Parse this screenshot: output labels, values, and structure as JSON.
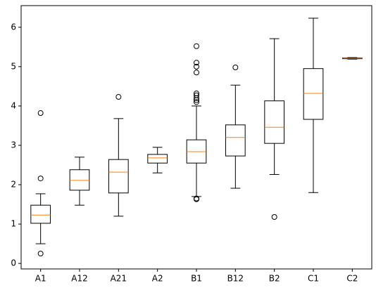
{
  "chart_data": {
    "type": "box",
    "categories": [
      "A1",
      "A12",
      "A21",
      "A2",
      "B1",
      "B12",
      "B2",
      "C1",
      "C2"
    ],
    "boxes": [
      {
        "whislo": 0.5,
        "q1": 1.02,
        "med": 1.23,
        "q3": 1.48,
        "whishi": 1.77,
        "fliers": [
          0.25,
          2.16,
          3.82
        ]
      },
      {
        "whislo": 1.48,
        "q1": 1.86,
        "med": 2.11,
        "q3": 2.38,
        "whishi": 2.7,
        "fliers": []
      },
      {
        "whislo": 1.2,
        "q1": 1.79,
        "med": 2.32,
        "q3": 2.64,
        "whishi": 3.68,
        "fliers": [
          4.23
        ]
      },
      {
        "whislo": 2.3,
        "q1": 2.55,
        "med": 2.68,
        "q3": 2.77,
        "whishi": 2.95,
        "fliers": []
      },
      {
        "whislo": 1.7,
        "q1": 2.55,
        "med": 2.84,
        "q3": 3.14,
        "whishi": 4.0,
        "fliers": [
          1.63,
          1.65,
          4.1,
          4.15,
          4.2,
          4.27,
          4.32,
          4.85,
          5.0,
          5.1,
          5.52
        ]
      },
      {
        "whislo": 1.91,
        "q1": 2.73,
        "med": 3.2,
        "q3": 3.52,
        "whishi": 4.53,
        "fliers": [
          4.98
        ]
      },
      {
        "whislo": 2.26,
        "q1": 3.05,
        "med": 3.46,
        "q3": 4.13,
        "whishi": 5.71,
        "fliers": [
          1.18
        ]
      },
      {
        "whislo": 1.8,
        "q1": 3.66,
        "med": 4.32,
        "q3": 4.95,
        "whishi": 6.23,
        "fliers": []
      },
      {
        "whislo": 5.19,
        "q1": 5.2,
        "med": 5.21,
        "q3": 5.22,
        "whishi": 5.23,
        "fliers": []
      }
    ],
    "color": "#000000",
    "median_color": "#ff7f0e",
    "ylim": [
      -0.14,
      6.55
    ],
    "yticks": [
      0,
      1,
      2,
      3,
      4,
      5,
      6
    ]
  }
}
